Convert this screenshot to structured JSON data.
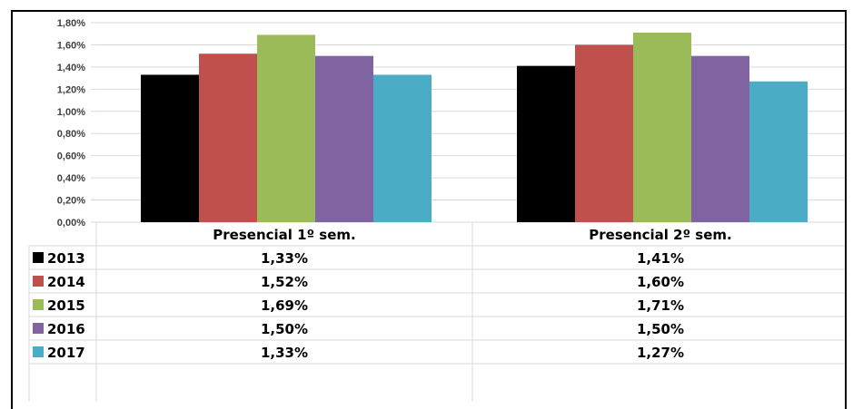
{
  "chart_data": {
    "type": "bar",
    "categories": [
      "Presencial 1º sem.",
      "Presencial 2º sem."
    ],
    "series": [
      {
        "name": "2013",
        "color": "#000000",
        "values": [
          1.33,
          1.41
        ],
        "labels": [
          "1,33%",
          "1,41%"
        ]
      },
      {
        "name": "2014",
        "color": "#c0504d",
        "values": [
          1.52,
          1.6
        ],
        "labels": [
          "1,52%",
          "1,60%"
        ]
      },
      {
        "name": "2015",
        "color": "#9bbb59",
        "values": [
          1.69,
          1.71
        ],
        "labels": [
          "1,69%",
          "1,71%"
        ]
      },
      {
        "name": "2016",
        "color": "#8064a2",
        "values": [
          1.5,
          1.5
        ],
        "labels": [
          "1,50%",
          "1,50%"
        ]
      },
      {
        "name": "2017",
        "color": "#4bacc6",
        "values": [
          1.33,
          1.27
        ],
        "labels": [
          "1,33%",
          "1,27%"
        ]
      }
    ],
    "yticks": [
      "0,00%",
      "0,20%",
      "0,40%",
      "0,60%",
      "0,80%",
      "1,00%",
      "1,20%",
      "1,40%",
      "1,60%",
      "1,80%"
    ],
    "ylim": [
      0,
      1.8
    ],
    "grid": true,
    "legend": "data-table"
  }
}
